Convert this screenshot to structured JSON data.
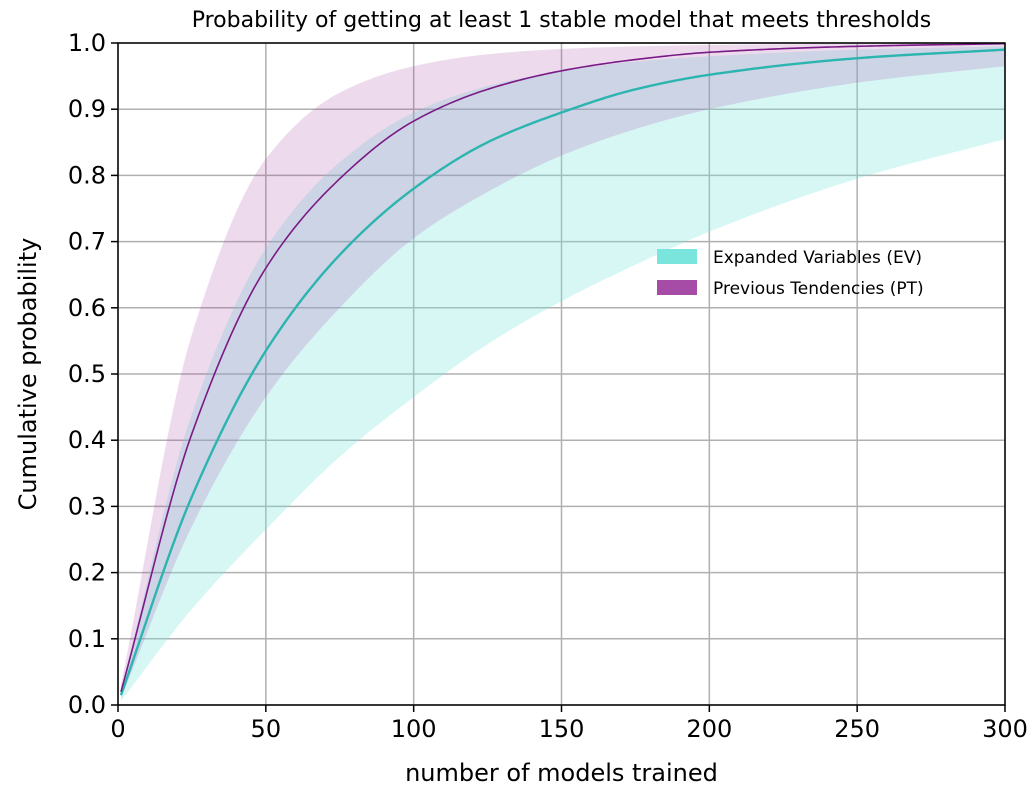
{
  "chart_data": {
    "type": "area",
    "title": "Probability of getting at least 1 stable model that meets thresholds",
    "xlabel": "number of models trained",
    "ylabel": "Cumulative probability",
    "xlim": [
      0,
      300
    ],
    "ylim": [
      0.0,
      1.0
    ],
    "xticks": [
      "0",
      "50",
      "100",
      "150",
      "200",
      "250",
      "300"
    ],
    "yticks": [
      "0.0",
      "0.1",
      "0.2",
      "0.3",
      "0.4",
      "0.5",
      "0.6",
      "0.7",
      "0.8",
      "0.9",
      "1.0"
    ],
    "grid": true,
    "legend_position": "center-right",
    "x": [
      1,
      25,
      50,
      75,
      100,
      125,
      150,
      175,
      200,
      250,
      300
    ],
    "series": [
      {
        "name": "Expanded Variables (EV)",
        "color": "#2cb5b0",
        "band_color": "#7ae5dd",
        "mean": [
          0.015,
          0.315,
          0.535,
          0.68,
          0.78,
          0.85,
          0.895,
          0.93,
          0.952,
          0.977,
          0.99
        ],
        "lower": [
          0.006,
          0.145,
          0.265,
          0.375,
          0.465,
          0.545,
          0.61,
          0.665,
          0.715,
          0.795,
          0.855
        ],
        "upper": [
          0.022,
          0.44,
          0.69,
          0.82,
          0.895,
          0.935,
          0.958,
          0.972,
          0.98,
          0.99,
          0.995
        ]
      },
      {
        "name": "Previous Tendencies (PT)",
        "color": "#7a1a86",
        "band_color": "#a64ca6",
        "mean": [
          0.02,
          0.41,
          0.66,
          0.795,
          0.882,
          0.93,
          0.958,
          0.975,
          0.986,
          0.995,
          0.999
        ],
        "lower": [
          0.01,
          0.27,
          0.465,
          0.6,
          0.705,
          0.775,
          0.83,
          0.87,
          0.9,
          0.94,
          0.965
        ],
        "upper": [
          0.03,
          0.56,
          0.825,
          0.925,
          0.965,
          0.983,
          0.991,
          0.995,
          0.997,
          0.999,
          1.0
        ]
      }
    ]
  }
}
